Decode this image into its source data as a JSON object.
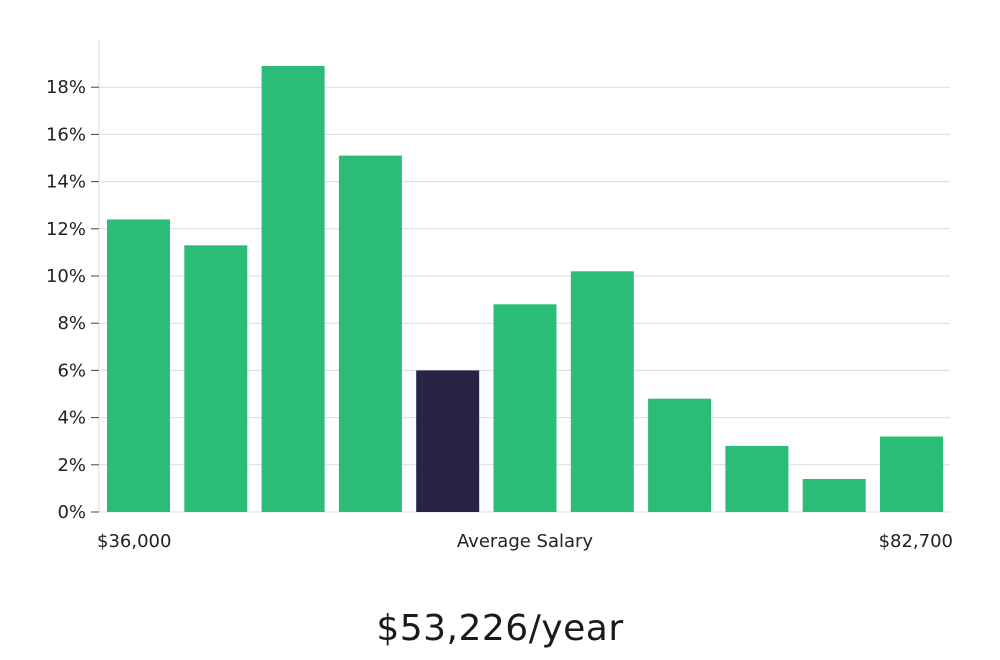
{
  "chart_data": {
    "type": "bar",
    "title": "",
    "xlabel": "Average Salary",
    "ylabel": "",
    "x_min_label": "$36,000",
    "x_max_label": "$82,700",
    "ylim": [
      0,
      0.2
    ],
    "yticks": [
      {
        "value": 0,
        "label": "0%"
      },
      {
        "value": 0.02,
        "label": "2%"
      },
      {
        "value": 0.04,
        "label": "4%"
      },
      {
        "value": 0.06,
        "label": "6%"
      },
      {
        "value": 0.08,
        "label": "8%"
      },
      {
        "value": 0.1,
        "label": "10%"
      },
      {
        "value": 0.12,
        "label": "12%"
      },
      {
        "value": 0.14,
        "label": "14%"
      },
      {
        "value": 0.16,
        "label": "16%"
      },
      {
        "value": 0.18,
        "label": "18%"
      }
    ],
    "values": [
      0.124,
      0.113,
      0.189,
      0.151,
      0.06,
      0.088,
      0.102,
      0.048,
      0.028,
      0.014,
      0.032
    ],
    "highlight_index": 4,
    "bar_color": "#2bbd77",
    "highlight_color": "#282443",
    "grid": true
  },
  "salary": {
    "value_text": "$53,226/year"
  }
}
